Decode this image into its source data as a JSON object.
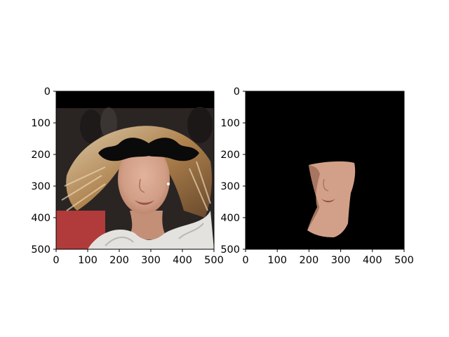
{
  "chart_data": [
    {
      "type": "image",
      "content": "photo of a woman with windswept hair; a black mustache shape is drawn over the upper face",
      "xlim": [
        0,
        500
      ],
      "ylim": [
        500,
        0
      ],
      "xticks": [
        0,
        100,
        200,
        300,
        400,
        500
      ],
      "yticks": [
        0,
        100,
        200,
        300,
        400,
        500
      ],
      "grid": false,
      "colors": {
        "top_band": "#000000",
        "background": "#2a2523",
        "hair": "#b88a58",
        "skin": "#d4a38a",
        "mustache": "#0a0a0a",
        "dress": "#e4e2de",
        "carpet": "#b13a3a"
      }
    },
    {
      "type": "image",
      "content": "segmented face region of the woman on a black background",
      "xlim": [
        0,
        500
      ],
      "ylim": [
        500,
        0
      ],
      "xticks": [
        0,
        100,
        200,
        300,
        400,
        500
      ],
      "yticks": [
        0,
        100,
        200,
        300,
        400,
        500
      ],
      "grid": false,
      "colors": {
        "background": "#000000",
        "skin": "#d2a089"
      }
    }
  ]
}
